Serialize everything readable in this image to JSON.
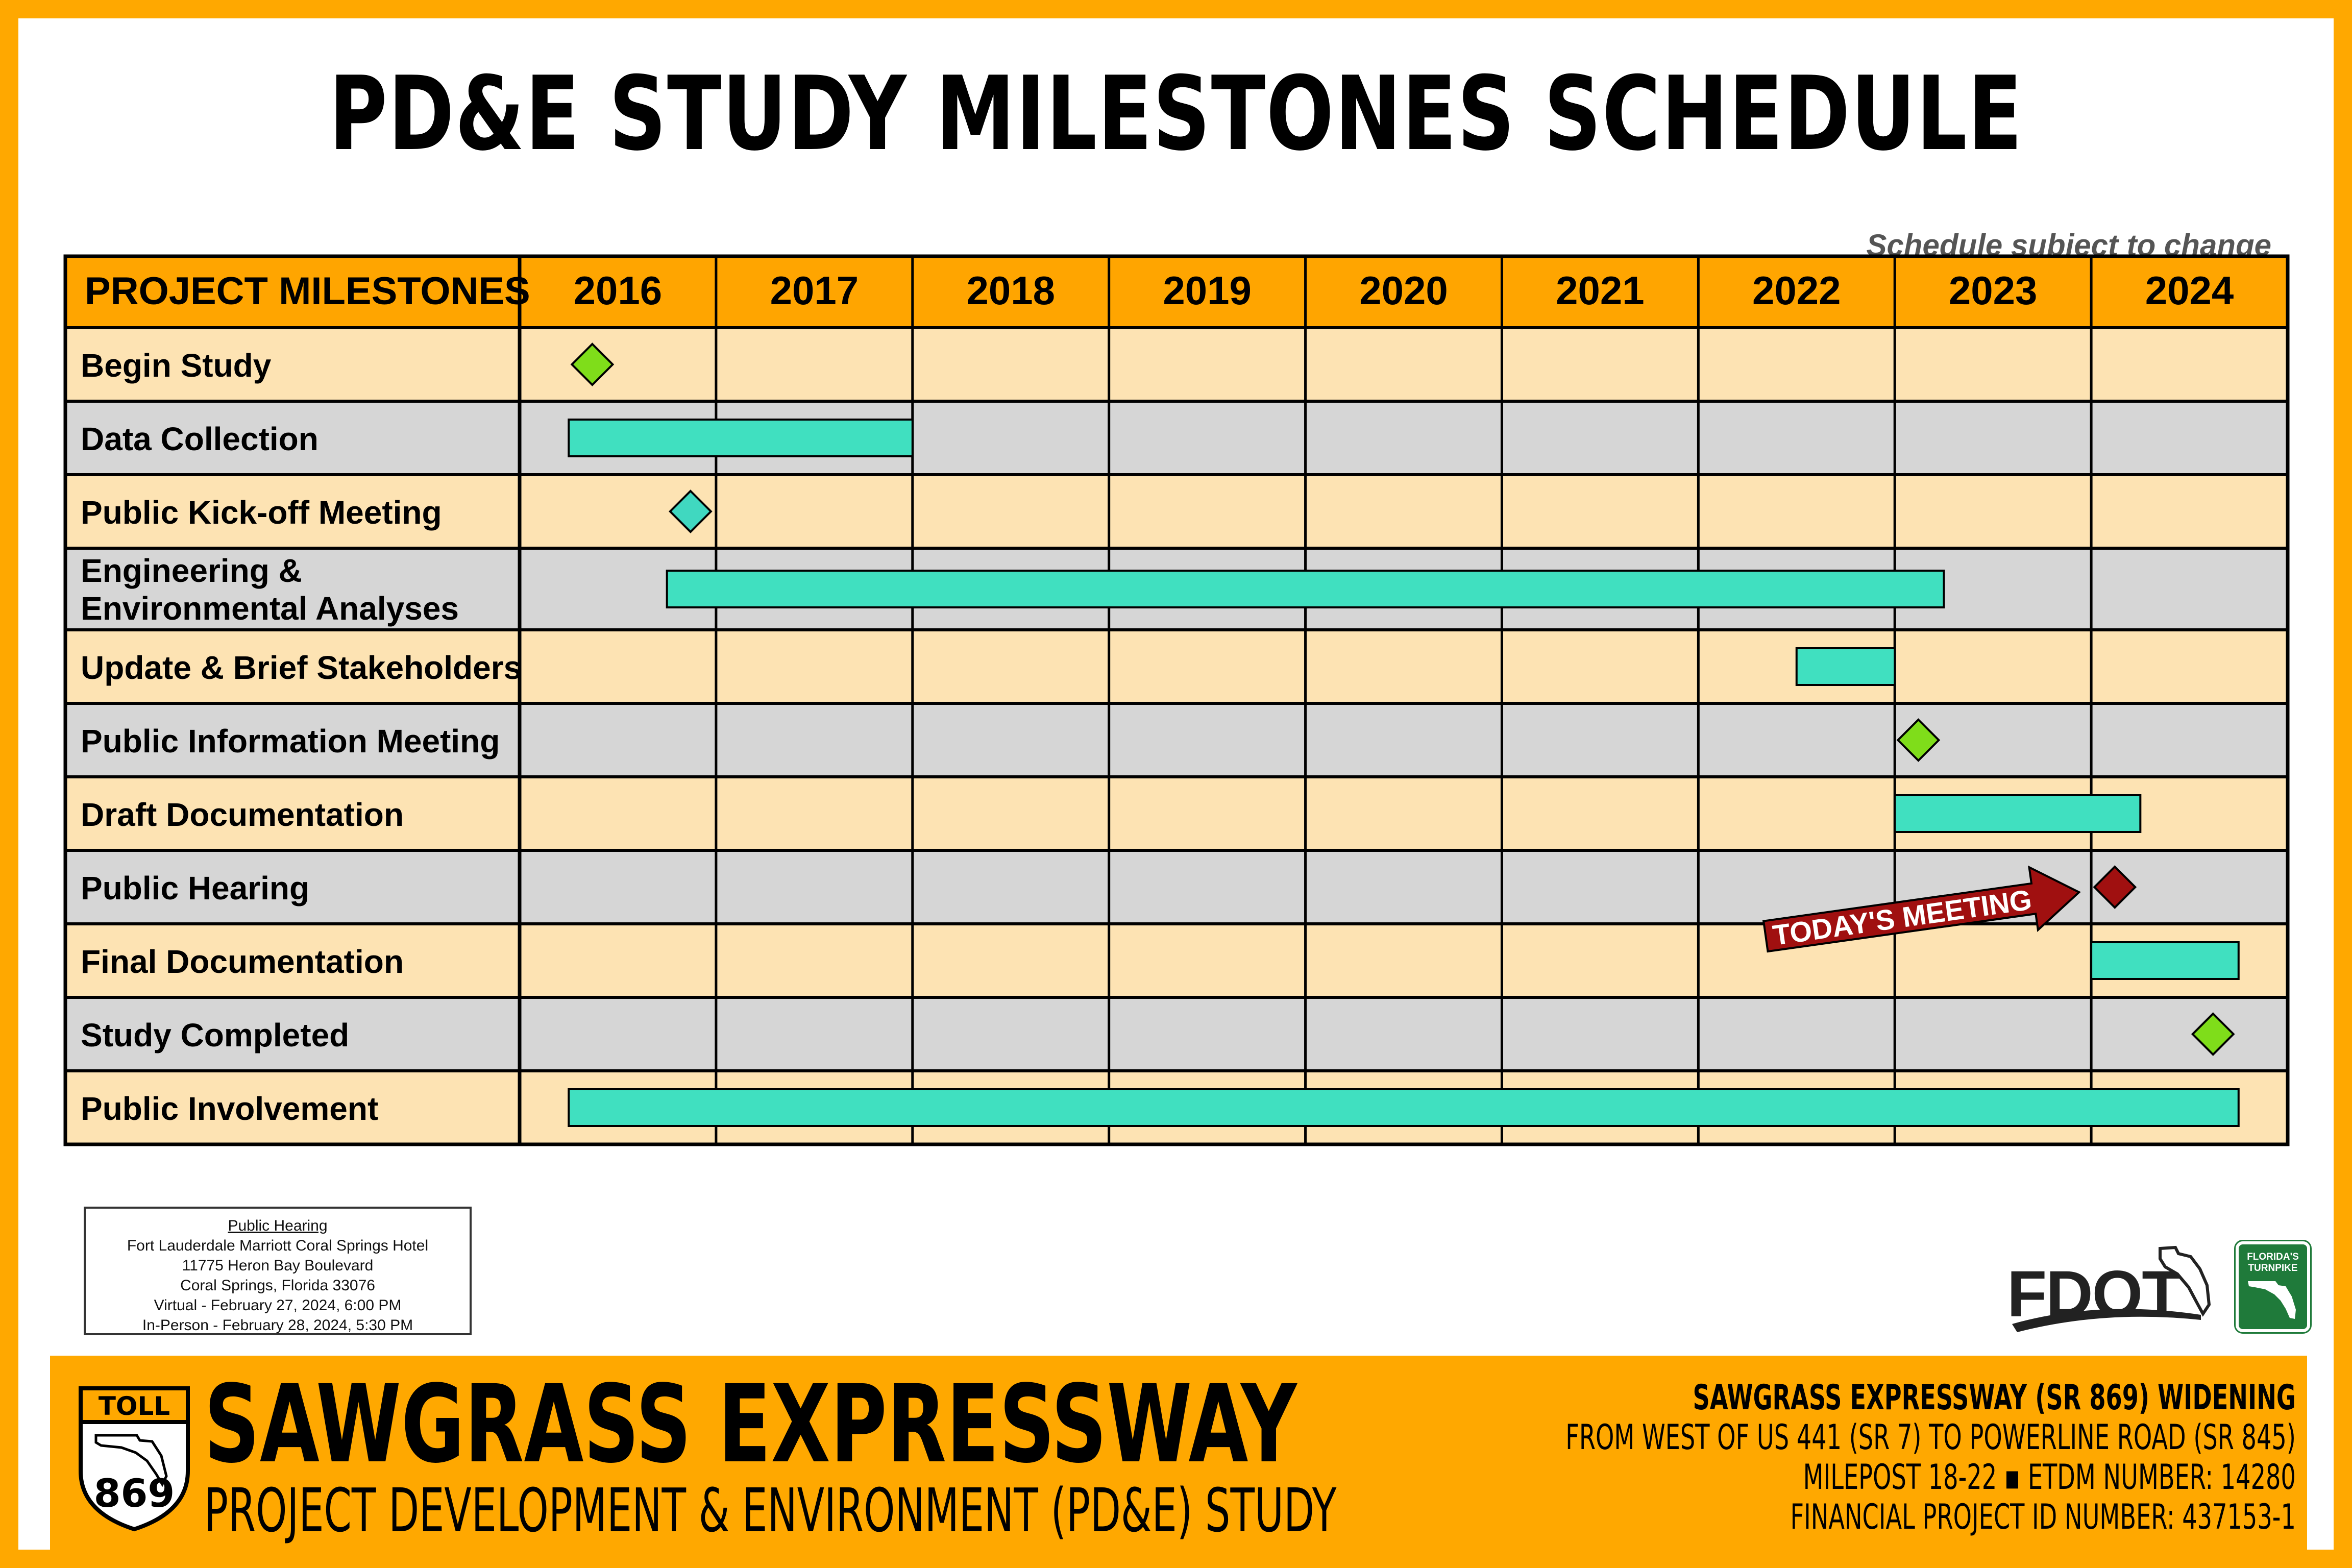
{
  "title": "PD&E STUDY MILESTONES SCHEDULE",
  "note": "Schedule subject to change",
  "colors": {
    "header": "#ffa500",
    "row_light": "#fde3b3",
    "row_dark": "#d6d6d6",
    "bar": "#40e0c0",
    "diamond_green": "#7fdd1a",
    "diamond_teal": "#40d8c0",
    "diamond_red": "#a01010",
    "today_arrow": "#a01010",
    "frame": "#ffa800"
  },
  "chart_data": {
    "type": "gantt",
    "header_label": "PROJECT MILESTONES",
    "years": [
      "2016",
      "2017",
      "2018",
      "2019",
      "2020",
      "2021",
      "2022",
      "2023",
      "2024"
    ],
    "x_range": [
      2016,
      2025
    ],
    "rows": [
      {
        "label": "Begin Study",
        "kind": "milestone",
        "at": 2016.37,
        "color": "green"
      },
      {
        "label": "Data Collection",
        "kind": "bar",
        "start": 2016.25,
        "end": 2018.0
      },
      {
        "label": "Public Kick-off Meeting",
        "kind": "milestone",
        "at": 2016.87,
        "color": "teal"
      },
      {
        "label": "Engineering & Environmental Analyses",
        "kind": "bar",
        "start": 2016.75,
        "end": 2023.25
      },
      {
        "label": "Update & Brief Stakeholders",
        "kind": "bar",
        "start": 2022.5,
        "end": 2023.0
      },
      {
        "label": "Public Information Meeting",
        "kind": "milestone",
        "at": 2023.12,
        "color": "green"
      },
      {
        "label": "Draft Documentation",
        "kind": "bar",
        "start": 2023.0,
        "end": 2024.25
      },
      {
        "label": "Public Hearing",
        "kind": "milestone",
        "at": 2024.12,
        "color": "red",
        "callout": "TODAY'S MEETING"
      },
      {
        "label": "Final Documentation",
        "kind": "bar",
        "start": 2024.0,
        "end": 2024.75
      },
      {
        "label": "Study Completed",
        "kind": "milestone",
        "at": 2024.62,
        "color": "green"
      },
      {
        "label": "Public Involvement",
        "kind": "bar",
        "start": 2016.25,
        "end": 2024.75
      }
    ]
  },
  "hearing_box": {
    "heading": "Public Hearing",
    "line1": "Fort Lauderdale Marriott Coral Springs Hotel",
    "line2": "11775 Heron Bay Boulevard",
    "line3": "Coral Springs, Florida 33076",
    "line4": "Virtual - February 27, 2024, 6:00 PM",
    "line5": "In-Person - February 28, 2024, 5:30 PM"
  },
  "logos": {
    "fdot": "FDOT",
    "turnpike_line1": "FLORIDA'S",
    "turnpike_line2": "TURNPIKE"
  },
  "footer": {
    "shield_top": "TOLL",
    "shield_number": "869",
    "brand": "SAWGRASS EXPRESSWAY",
    "brand_sub": "PROJECT DEVELOPMENT & ENVIRONMENT (PD&E) STUDY",
    "info1": "SAWGRASS EXPRESSWAY (SR 869) WIDENING",
    "info2": "FROM WEST OF US 441 (SR 7) TO POWERLINE ROAD (SR 845)",
    "info3": "MILEPOST 18-22 ▪ ETDM NUMBER: 14280",
    "info4": "FINANCIAL PROJECT ID NUMBER: 437153-1"
  }
}
